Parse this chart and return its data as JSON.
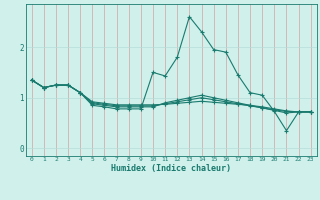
{
  "xlabel": "Humidex (Indice chaleur)",
  "background_color": "#cff0eb",
  "grid_color_h": "#b8ddd8",
  "grid_color_v": "#d4a0a0",
  "line_color": "#1a7a6e",
  "x_values": [
    0,
    1,
    2,
    3,
    4,
    5,
    6,
    7,
    8,
    9,
    10,
    11,
    12,
    13,
    14,
    15,
    16,
    17,
    18,
    19,
    20,
    21,
    22,
    23
  ],
  "lines": [
    [
      1.35,
      1.2,
      1.25,
      1.25,
      1.1,
      0.85,
      0.82,
      0.78,
      0.78,
      0.78,
      1.5,
      1.43,
      1.8,
      2.6,
      2.3,
      1.95,
      1.9,
      1.45,
      1.1,
      1.05,
      0.73,
      0.35,
      0.72,
      0.72
    ],
    [
      1.35,
      1.2,
      1.25,
      1.25,
      1.1,
      0.88,
      0.85,
      0.82,
      0.82,
      0.82,
      0.82,
      0.9,
      0.95,
      1.0,
      1.05,
      1.0,
      0.95,
      0.9,
      0.85,
      0.8,
      0.75,
      0.7,
      0.72,
      0.72
    ],
    [
      1.35,
      1.2,
      1.25,
      1.25,
      1.1,
      0.9,
      0.87,
      0.84,
      0.84,
      0.84,
      0.84,
      0.88,
      0.92,
      0.96,
      1.0,
      0.96,
      0.92,
      0.88,
      0.84,
      0.8,
      0.76,
      0.73,
      0.72,
      0.72
    ],
    [
      1.35,
      1.2,
      1.25,
      1.25,
      1.1,
      0.92,
      0.89,
      0.86,
      0.86,
      0.86,
      0.86,
      0.87,
      0.89,
      0.91,
      0.93,
      0.91,
      0.89,
      0.87,
      0.85,
      0.82,
      0.78,
      0.74,
      0.72,
      0.72
    ]
  ],
  "ylim": [
    -0.15,
    2.85
  ],
  "xlim": [
    -0.5,
    23.5
  ],
  "yticks": [
    0,
    1,
    2
  ],
  "xticks": [
    0,
    1,
    2,
    3,
    4,
    5,
    6,
    7,
    8,
    9,
    10,
    11,
    12,
    13,
    14,
    15,
    16,
    17,
    18,
    19,
    20,
    21,
    22,
    23
  ],
  "figwidth": 3.2,
  "figheight": 2.0,
  "dpi": 100
}
